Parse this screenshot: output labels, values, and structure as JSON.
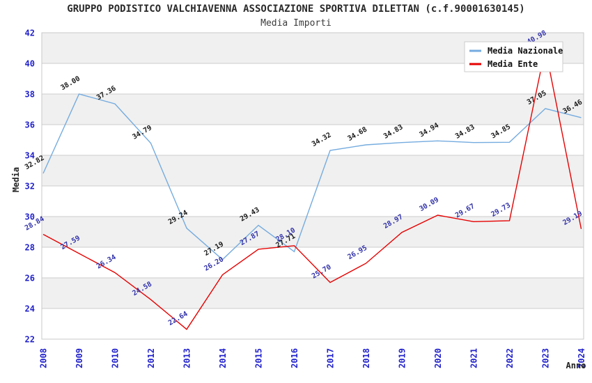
{
  "header": {
    "title": "GRUPPO PODISTICO VALCHIAVENNA ASSOCIAZIONE SPORTIVA DILETTAN (c.f.90001630145)",
    "subtitle": "Media Importi"
  },
  "chart_data": {
    "type": "line",
    "title": "GRUPPO PODISTICO VALCHIAVENNA ASSOCIAZIONE SPORTIVA DILETTAN (c.f.90001630145)",
    "subtitle": "Media Importi",
    "xlabel": "Anno",
    "ylabel": "Media",
    "ylim": [
      22,
      42
    ],
    "ytick_step": 2,
    "y_ticks": [
      22,
      24,
      26,
      28,
      30,
      32,
      34,
      36,
      38,
      40,
      42
    ],
    "grid": "horizontal-bands-alternating",
    "legend_position": "top-right",
    "categories": [
      "2008",
      "2009",
      "2010",
      "2012",
      "2013",
      "2014",
      "2015",
      "2016",
      "2017",
      "2018",
      "2019",
      "2020",
      "2021",
      "2022",
      "2023",
      "2024"
    ],
    "series": [
      {
        "name": "Media Nazionale",
        "color": "#74abdf",
        "label_color": "#1a1a1a",
        "values": [
          32.82,
          38.0,
          37.36,
          34.79,
          29.24,
          27.19,
          29.43,
          27.71,
          34.32,
          34.68,
          34.83,
          34.94,
          34.83,
          34.85,
          37.05,
          36.46
        ]
      },
      {
        "name": "Media Ente",
        "color": "#e60000",
        "label_color": "#3333aa",
        "values": [
          28.84,
          27.59,
          26.34,
          24.58,
          22.64,
          26.2,
          27.87,
          28.1,
          25.7,
          26.95,
          28.97,
          30.09,
          29.67,
          29.73,
          40.98,
          29.19
        ]
      }
    ]
  },
  "colors": {
    "tick_label": "#2222cc",
    "axis_title": "#222222",
    "band_gray": "#f0f0f0",
    "band_white": "#ffffff",
    "gridline": "#cdcdcd",
    "plot_border": "#c8c8c8",
    "legend_border": "#cccccc",
    "legend_bg": "#ffffff",
    "legend_text": "#111111"
  }
}
